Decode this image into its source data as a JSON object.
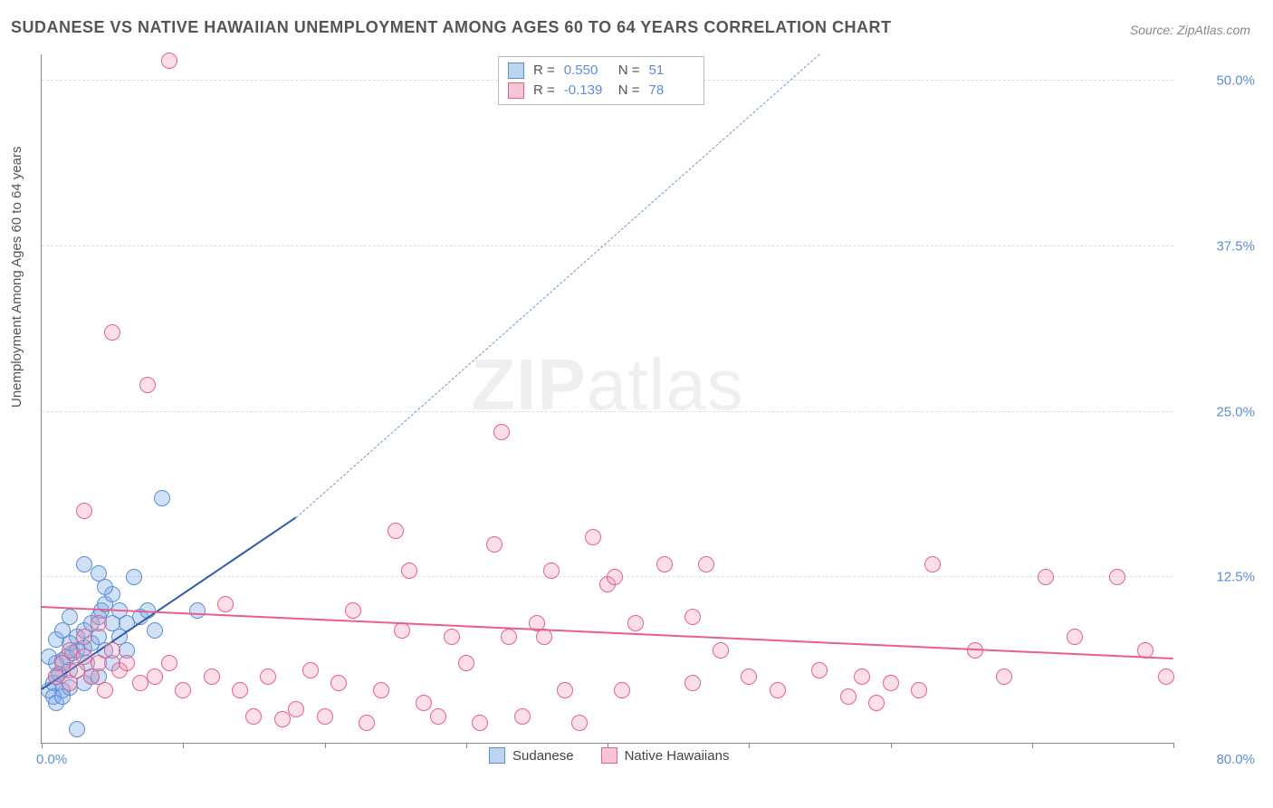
{
  "title": "SUDANESE VS NATIVE HAWAIIAN UNEMPLOYMENT AMONG AGES 60 TO 64 YEARS CORRELATION CHART",
  "source": "Source: ZipAtlas.com",
  "ylabel": "Unemployment Among Ages 60 to 64 years",
  "watermark_bold": "ZIP",
  "watermark_rest": "atlas",
  "chart": {
    "type": "scatter",
    "background_color": "#ffffff",
    "grid_color": "#dddddd",
    "axis_color": "#888888",
    "label_color": "#555555",
    "tick_color": "#5b8dd6",
    "xlim": [
      0,
      80
    ],
    "ylim": [
      0,
      52
    ],
    "xtick_labels": {
      "min": "0.0%",
      "max": "80.0%"
    },
    "xtick_positions": [
      0,
      10,
      20,
      30,
      40,
      50,
      60,
      70,
      80
    ],
    "ytick_positions": [
      12.5,
      25.0,
      37.5,
      50.0
    ],
    "ytick_labels": [
      "12.5%",
      "25.0%",
      "37.5%",
      "50.0%"
    ],
    "point_radius": 9,
    "point_border_width": 1.5,
    "series": [
      {
        "name": "Sudanese",
        "fill": "rgba(120,170,230,0.35)",
        "stroke": "#5b8dd6",
        "swatch_fill": "#bcd4f0",
        "swatch_stroke": "#5b8dd6",
        "R": "0.550",
        "N": "51",
        "trend": {
          "x1": 0,
          "y1": 4.0,
          "x2": 18,
          "y2": 17.0,
          "color": "#2a5db0",
          "width": 2.5,
          "dash": false
        },
        "trend_ext": {
          "x1": 18,
          "y1": 17.0,
          "x2": 55,
          "y2": 52.0,
          "color": "#6a96d8",
          "width": 1.5,
          "dash": true
        },
        "points": [
          [
            0.5,
            4.0
          ],
          [
            0.8,
            4.5
          ],
          [
            1.0,
            5.0
          ],
          [
            1.2,
            5.2
          ],
          [
            1.0,
            6.0
          ],
          [
            1.5,
            6.2
          ],
          [
            1.8,
            6.5
          ],
          [
            2.0,
            5.5
          ],
          [
            2.2,
            6.8
          ],
          [
            2.0,
            7.5
          ],
          [
            2.5,
            7.0
          ],
          [
            2.5,
            8.0
          ],
          [
            3.0,
            7.2
          ],
          [
            3.0,
            8.5
          ],
          [
            3.2,
            6.0
          ],
          [
            3.5,
            9.0
          ],
          [
            3.5,
            7.5
          ],
          [
            4.0,
            8.0
          ],
          [
            4.0,
            9.5
          ],
          [
            4.2,
            10.0
          ],
          [
            4.5,
            7.0
          ],
          [
            4.5,
            10.5
          ],
          [
            5.0,
            9.0
          ],
          [
            5.0,
            11.2
          ],
          [
            5.5,
            10.0
          ],
          [
            5.5,
            8.0
          ],
          [
            6.0,
            9.0
          ],
          [
            1.5,
            4.0
          ],
          [
            2.0,
            4.2
          ],
          [
            0.8,
            3.5
          ],
          [
            1.0,
            3.0
          ],
          [
            1.5,
            3.5
          ],
          [
            3.0,
            4.5
          ],
          [
            3.5,
            5.0
          ],
          [
            4.0,
            5.0
          ],
          [
            5.0,
            6.0
          ],
          [
            6.0,
            7.0
          ],
          [
            6.5,
            12.5
          ],
          [
            7.0,
            9.5
          ],
          [
            7.5,
            10.0
          ],
          [
            8.0,
            8.5
          ],
          [
            3.0,
            13.5
          ],
          [
            4.0,
            12.8
          ],
          [
            4.5,
            11.8
          ],
          [
            8.5,
            18.5
          ],
          [
            2.5,
            1.0
          ],
          [
            0.5,
            6.5
          ],
          [
            1.0,
            7.8
          ],
          [
            1.5,
            8.5
          ],
          [
            2.0,
            9.5
          ],
          [
            11.0,
            10.0
          ]
        ]
      },
      {
        "name": "Native Hawaiians",
        "fill": "rgba(240,150,180,0.30)",
        "stroke": "#e85f8a",
        "swatch_fill": "#f7c6d4",
        "swatch_stroke": "#e85f8a",
        "R": "-0.139",
        "N": "78",
        "trend": {
          "x1": 0,
          "y1": 10.2,
          "x2": 80,
          "y2": 6.3,
          "color": "#e85f8a",
          "width": 2.5,
          "dash": false
        },
        "points": [
          [
            1.0,
            5.0
          ],
          [
            1.5,
            6.0
          ],
          [
            2.0,
            4.5
          ],
          [
            2.0,
            7.0
          ],
          [
            2.5,
            5.5
          ],
          [
            3.0,
            6.5
          ],
          [
            3.0,
            8.0
          ],
          [
            3.5,
            5.0
          ],
          [
            4.0,
            6.0
          ],
          [
            4.0,
            9.0
          ],
          [
            4.5,
            4.0
          ],
          [
            5.0,
            7.0
          ],
          [
            5.5,
            5.5
          ],
          [
            6.0,
            6.0
          ],
          [
            7.0,
            4.5
          ],
          [
            8.0,
            5.0
          ],
          [
            9.0,
            6.0
          ],
          [
            10.0,
            4.0
          ],
          [
            7.5,
            27.0
          ],
          [
            9.0,
            51.5
          ],
          [
            3.0,
            17.5
          ],
          [
            5.0,
            31.0
          ],
          [
            12.0,
            5.0
          ],
          [
            13.0,
            10.5
          ],
          [
            14.0,
            4.0
          ],
          [
            15.0,
            2.0
          ],
          [
            16.0,
            5.0
          ],
          [
            17.0,
            1.8
          ],
          [
            18.0,
            2.5
          ],
          [
            19.0,
            5.5
          ],
          [
            20.0,
            2.0
          ],
          [
            21.0,
            4.5
          ],
          [
            22.0,
            10.0
          ],
          [
            23.0,
            1.5
          ],
          [
            24.0,
            4.0
          ],
          [
            25.0,
            16.0
          ],
          [
            25.5,
            8.5
          ],
          [
            26.0,
            13.0
          ],
          [
            27.0,
            3.0
          ],
          [
            28.0,
            2.0
          ],
          [
            29.0,
            8.0
          ],
          [
            30.0,
            6.0
          ],
          [
            31.0,
            1.5
          ],
          [
            32.0,
            15.0
          ],
          [
            32.5,
            23.5
          ],
          [
            33.0,
            8.0
          ],
          [
            34.0,
            2.0
          ],
          [
            35.0,
            9.0
          ],
          [
            35.5,
            8.0
          ],
          [
            36.0,
            13.0
          ],
          [
            37.0,
            4.0
          ],
          [
            38.0,
            1.5
          ],
          [
            39.0,
            15.5
          ],
          [
            40.0,
            12.0
          ],
          [
            40.5,
            12.5
          ],
          [
            41.0,
            4.0
          ],
          [
            42.0,
            9.0
          ],
          [
            44.0,
            13.5
          ],
          [
            46.0,
            9.5
          ],
          [
            46.0,
            4.5
          ],
          [
            47.0,
            13.5
          ],
          [
            48.0,
            7.0
          ],
          [
            50.0,
            5.0
          ],
          [
            52.0,
            4.0
          ],
          [
            55.0,
            5.5
          ],
          [
            57.0,
            3.5
          ],
          [
            58.0,
            5.0
          ],
          [
            59.0,
            3.0
          ],
          [
            60.0,
            4.5
          ],
          [
            62.0,
            4.0
          ],
          [
            63.0,
            13.5
          ],
          [
            66.0,
            7.0
          ],
          [
            68.0,
            5.0
          ],
          [
            71.0,
            12.5
          ],
          [
            73.0,
            8.0
          ],
          [
            76.0,
            12.5
          ],
          [
            78.0,
            7.0
          ],
          [
            79.5,
            5.0
          ]
        ]
      }
    ],
    "stats_labels": {
      "R": "R  =",
      "N": "N  ="
    },
    "legend_labels": [
      "Sudanese",
      "Native Hawaiians"
    ]
  }
}
